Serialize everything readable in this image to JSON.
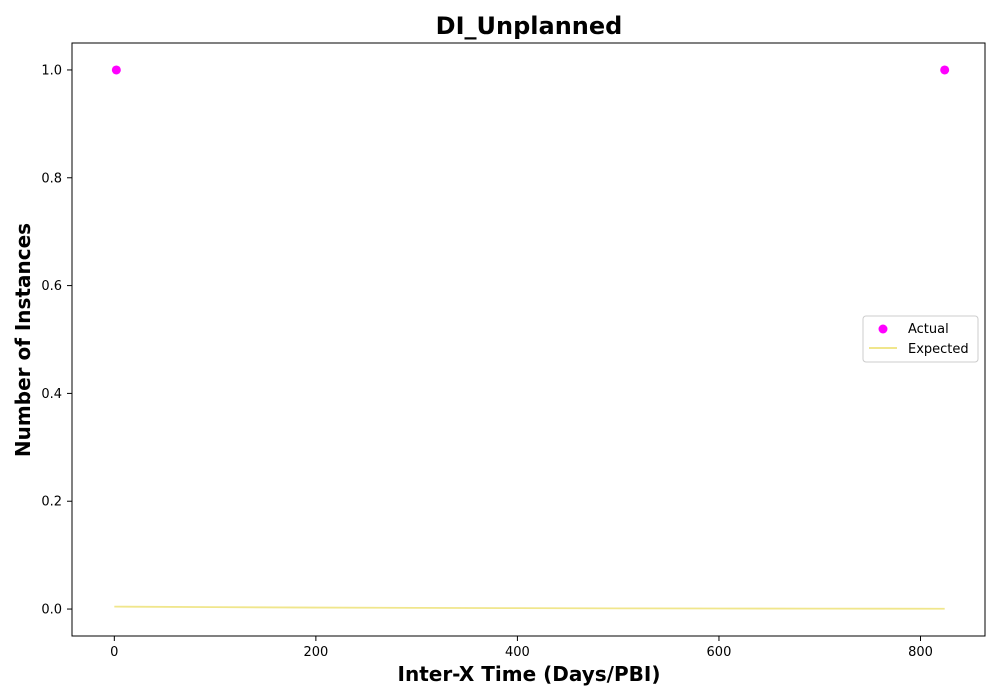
{
  "chart_data": {
    "type": "scatter",
    "title": "DI_Unplanned",
    "xlabel": "Inter-X Time (Days/PBI)",
    "ylabel": "Number of Instances",
    "xlim": [
      -42,
      864
    ],
    "ylim": [
      -0.05,
      1.05
    ],
    "x_ticks": [
      0,
      200,
      400,
      600,
      800
    ],
    "x_tick_labels": [
      "0",
      "200",
      "400",
      "600",
      "800"
    ],
    "y_ticks": [
      0.0,
      0.2,
      0.4,
      0.6,
      0.8,
      1.0
    ],
    "y_tick_labels": [
      "0.0",
      "0.2",
      "0.4",
      "0.6",
      "0.8",
      "1.0"
    ],
    "grid": false,
    "legend": {
      "position": "center-right",
      "entries": [
        {
          "label": "Actual",
          "marker": "circle",
          "color": "#ff00ff"
        },
        {
          "label": "Expected",
          "marker": "line",
          "color": "#f0e68c"
        }
      ]
    },
    "series": [
      {
        "name": "Actual",
        "kind": "scatter",
        "color": "#ff00ff",
        "points": [
          {
            "x": 2,
            "y": 1.0
          },
          {
            "x": 824,
            "y": 1.0
          }
        ]
      },
      {
        "name": "Expected",
        "kind": "line",
        "color": "#f0e68c",
        "points": [
          {
            "x": 0,
            "y": 0.0045
          },
          {
            "x": 100,
            "y": 0.0035
          },
          {
            "x": 200,
            "y": 0.0028
          },
          {
            "x": 300,
            "y": 0.0022
          },
          {
            "x": 400,
            "y": 0.0017
          },
          {
            "x": 500,
            "y": 0.0013
          },
          {
            "x": 600,
            "y": 0.001
          },
          {
            "x": 700,
            "y": 0.0008
          },
          {
            "x": 824,
            "y": 0.0006
          }
        ]
      }
    ]
  }
}
